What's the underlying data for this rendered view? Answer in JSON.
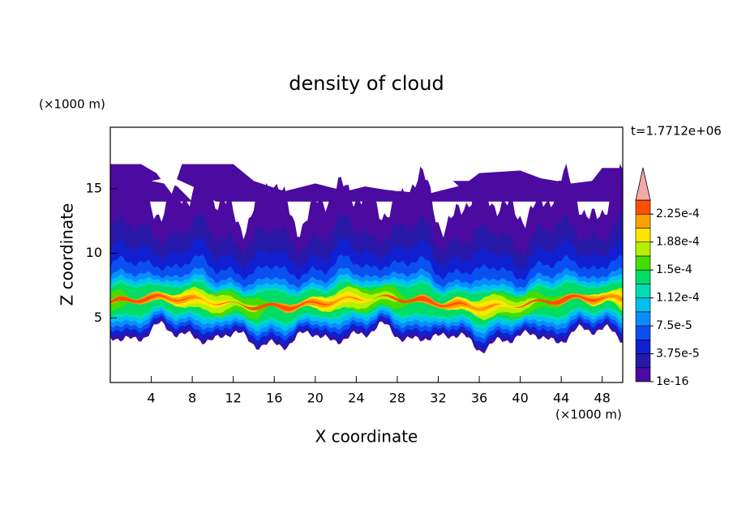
{
  "chart_data": {
    "type": "contour",
    "title": "density of cloud",
    "x_label": "X coordinate",
    "y_label": "Z coordinate",
    "x_unit": "(×1000 m)",
    "y_unit": "(×1000 m)",
    "annotation": "t=1.7712e+06",
    "xlim": [
      0,
      50
    ],
    "xticks": [
      4,
      8,
      12,
      16,
      20,
      24,
      28,
      32,
      36,
      40,
      44,
      48
    ],
    "ylim": [
      0,
      19.75
    ],
    "yticks": [
      5,
      10,
      15
    ],
    "levels": [
      1e-16,
      1.875e-05,
      3.75e-05,
      5.625e-05,
      7.5e-05,
      9.375e-05,
      0.0001125,
      0.00013125,
      0.00015,
      0.00016875,
      0.0001875,
      0.00020625,
      0.000225,
      0.00024375
    ],
    "colors": [
      "#4b0aa0",
      "#2818a8",
      "#1020d0",
      "#0a50f0",
      "#0a8cff",
      "#00c0f0",
      "#00dcb4",
      "#00dc64",
      "#46dc00",
      "#b4f000",
      "#ffe600",
      "#ffa000",
      "#ff5000"
    ],
    "extend_color": "#f4a8a8",
    "colorbar_ticks": [
      1e-16,
      {
        "value": 3.75e-05,
        "label": "3.75e-5"
      },
      {
        "value": 7.5e-05,
        "label": "7.5e-5"
      },
      {
        "value": 0.0001125,
        "label": "1.12e-4"
      },
      {
        "value": 0.00015,
        "label": "1.5e-4"
      },
      {
        "value": 0.0001875,
        "label": "1.88e-4"
      },
      {
        "value": 0.000225,
        "label": "2.25e-4"
      }
    ]
  }
}
